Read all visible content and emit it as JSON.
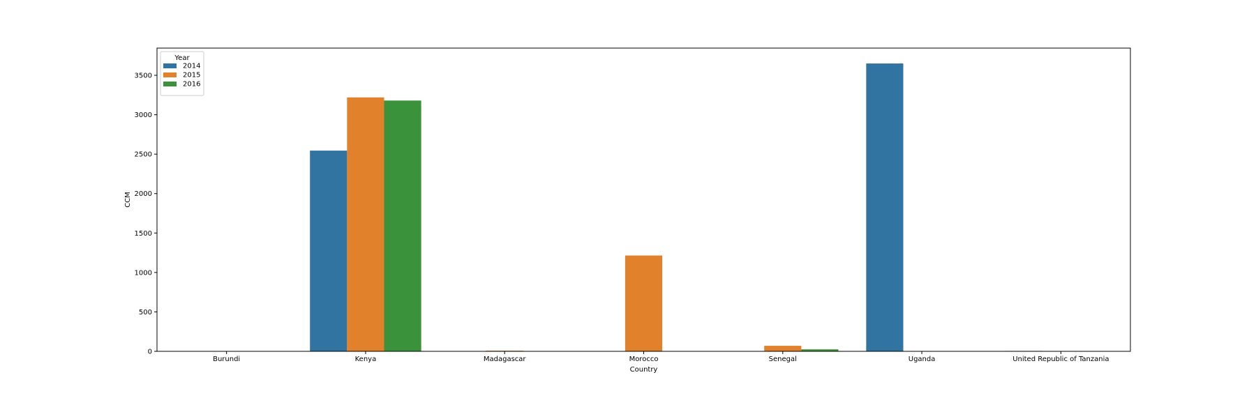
{
  "chart_data": {
    "type": "bar",
    "xlabel": "Country",
    "ylabel": "CCM",
    "categories": [
      "Burundi",
      "Kenya",
      "Madagascar",
      "Morocco",
      "Senegal",
      "Uganda",
      "United Republic of Tanzania"
    ],
    "series": [
      {
        "name": "2014",
        "color": "#3274a1",
        "values": [
          0,
          2545,
          0,
          0,
          0,
          3650,
          5
        ]
      },
      {
        "name": "2015",
        "color": "#e1812c",
        "values": [
          0,
          3220,
          8,
          1215,
          70,
          0,
          0
        ]
      },
      {
        "name": "2016",
        "color": "#3a923a",
        "values": [
          0,
          3180,
          0,
          0,
          25,
          0,
          0
        ]
      }
    ],
    "ylim": [
      0,
      3845
    ],
    "yticks": [
      0,
      500,
      1000,
      1500,
      2000,
      2500,
      3000,
      3500
    ],
    "legend": {
      "title": "Year",
      "position": "top-left"
    },
    "grid": false
  }
}
